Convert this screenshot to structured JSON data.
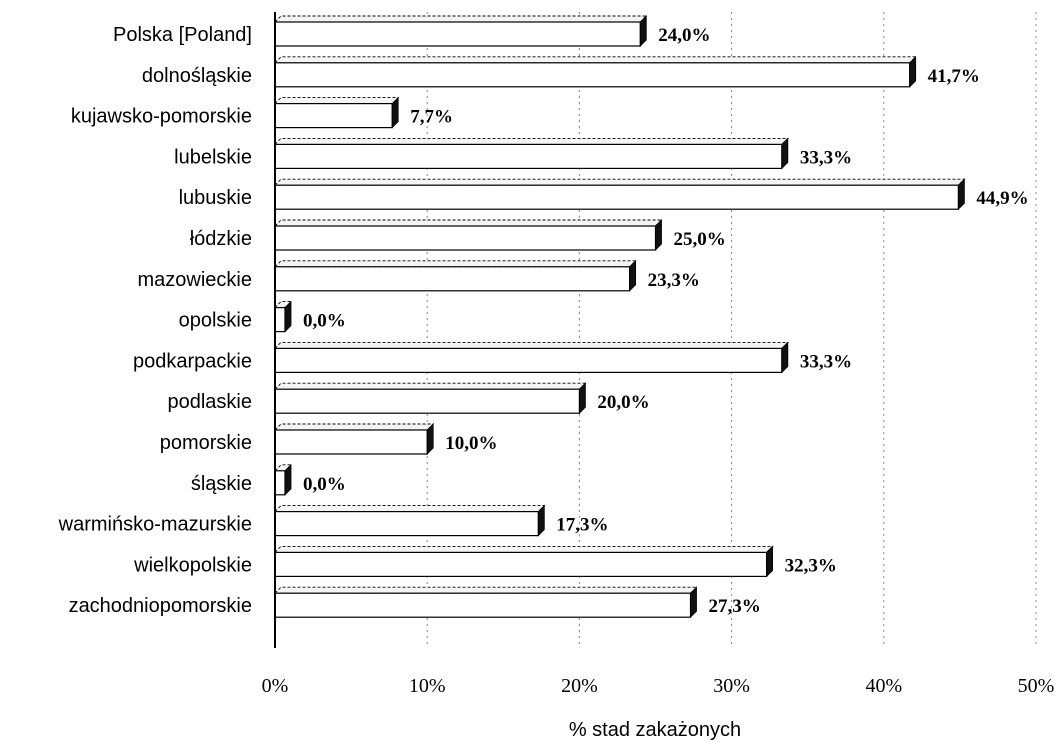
{
  "chart_data": {
    "type": "bar",
    "orientation": "horizontal",
    "categories": [
      "Polska [Poland]",
      "dolnośląskie",
      "kujawsko-pomorskie",
      "lubelskie",
      "lubuskie",
      "łódzkie",
      "mazowieckie",
      "opolskie",
      "podkarpackie",
      "podlaskie",
      "pomorskie",
      "śląskie",
      "warmińsko-mazurskie",
      "wielkopolskie",
      "zachodniopomorskie"
    ],
    "values": [
      24.0,
      41.7,
      7.7,
      33.3,
      44.9,
      25.0,
      23.3,
      0.0,
      33.3,
      20.0,
      10.0,
      0.0,
      17.3,
      32.3,
      27.3
    ],
    "value_labels": [
      "24,0%",
      "41,7%",
      "7,7%",
      "33,3%",
      "44,9%",
      "25,0%",
      "23,3%",
      "0,0%",
      "33,3%",
      "20,0%",
      "10,0%",
      "0,0%",
      "17,3%",
      "32,3%",
      "27,3%"
    ],
    "xlabel": "% stad zakażonych",
    "xlim": [
      0,
      50
    ],
    "x_ticks": [
      0,
      10,
      20,
      30,
      40,
      50
    ],
    "x_tick_labels": [
      "0%",
      "10%",
      "20%",
      "30%",
      "40%",
      "50%"
    ],
    "grid": true,
    "legend": "none",
    "bar_color": "#ffffff",
    "edge_color": "#000000"
  }
}
